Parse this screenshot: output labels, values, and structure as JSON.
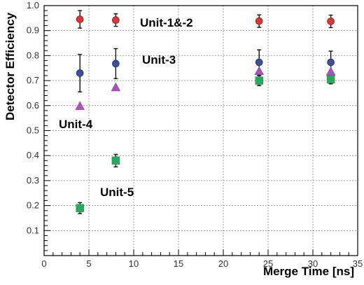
{
  "chart_data": {
    "type": "scatter",
    "xlabel": "Merge Time [ns]",
    "ylabel": "Detector Efficiency",
    "xlim": [
      0,
      35
    ],
    "ylim": [
      0,
      1.0
    ],
    "xticks": [
      0,
      5,
      10,
      15,
      20,
      25,
      30,
      35
    ],
    "yticks": [
      0.1,
      0.2,
      0.3,
      0.4,
      0.5,
      0.6,
      0.7,
      0.8,
      0.9,
      1.0
    ],
    "xtick_labels": [
      "0",
      "5",
      "10",
      "15",
      "20",
      "25",
      "30",
      "35"
    ],
    "ytick_labels": [
      "0.1",
      "0.2",
      "0.3",
      "0.4",
      "0.5",
      "0.6",
      "0.7",
      "0.8",
      "0.9",
      "1.0"
    ],
    "grid": true,
    "series": [
      {
        "name": "Unit-1&-2",
        "marker": "circle",
        "color": "#e8312f",
        "x": [
          4,
          8,
          24,
          32
        ],
        "y": [
          0.945,
          0.942,
          0.938,
          0.937
        ],
        "err": [
          0.035,
          0.025,
          0.025,
          0.025
        ]
      },
      {
        "name": "Unit-3",
        "marker": "circle",
        "color": "#3b4fa8",
        "x": [
          4,
          8,
          24,
          32
        ],
        "y": [
          0.73,
          0.768,
          0.773,
          0.773
        ],
        "err": [
          0.075,
          0.06,
          0.05,
          0.045
        ]
      },
      {
        "name": "Unit-4",
        "marker": "triangle",
        "color": "#b04fc0",
        "x": [
          4,
          8,
          24,
          32
        ],
        "y": [
          0.6,
          0.675,
          0.74,
          0.738
        ],
        "err": [
          0,
          0,
          0,
          0
        ]
      },
      {
        "name": "Unit-5",
        "marker": "square",
        "color": "#1fae5a",
        "x": [
          4,
          8,
          24,
          32
        ],
        "y": [
          0.19,
          0.38,
          0.7,
          0.705
        ],
        "err": [
          0.022,
          0.025,
          0.02,
          0.018
        ]
      }
    ]
  }
}
